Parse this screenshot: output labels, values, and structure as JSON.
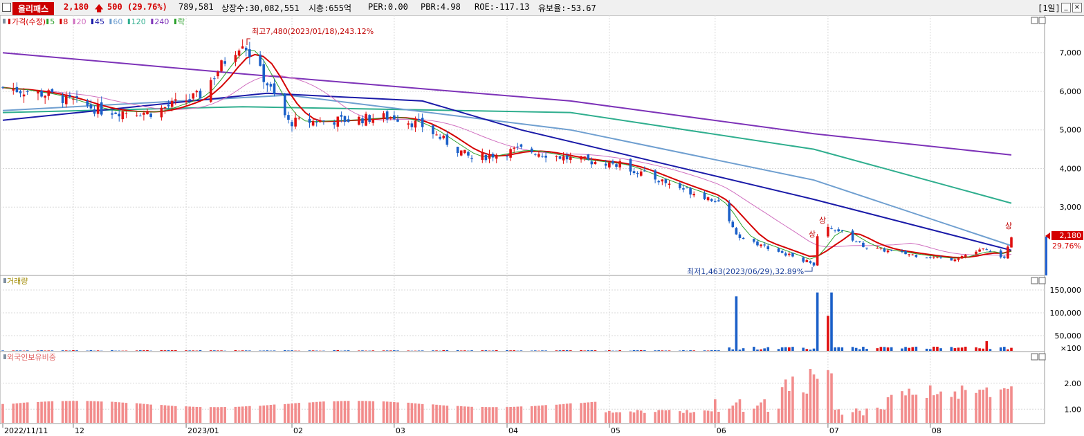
{
  "header": {
    "stock_name": "올리패스",
    "price": "2,180",
    "change": "500",
    "change_pct": "(29.76%)",
    "volume": "789,581",
    "listed_shares": "상장수:30,082,551",
    "market_cap": "시총:655억",
    "per": "PER:0.00",
    "pbr": "PBR:4.98",
    "roe": "ROE:-117.13",
    "float_ratio": "유보율:-53.67",
    "period": "[1일]"
  },
  "price_panel": {
    "legend": [
      {
        "label": "가격(수정)",
        "color": "#d40000"
      },
      {
        "label": "5",
        "color": "#2ca02c"
      },
      {
        "label": "8",
        "color": "#d40000"
      },
      {
        "label": "20",
        "color": "#d070c0"
      },
      {
        "label": "45",
        "color": "#1a1aa8"
      },
      {
        "label": "60",
        "color": "#6f9fd0"
      },
      {
        "label": "120",
        "color": "#2fae8e"
      },
      {
        "label": "240",
        "color": "#7d32b8"
      },
      {
        "label": "락",
        "color": "#2ca02c"
      }
    ],
    "high_annotation": "최고7,480(2023/01/18),243.12%",
    "low_annotation": "최저1,463(2023/06/29),32.89%",
    "upper_limit_marker": "상",
    "last_price_label": "2,180",
    "last_change_label": "29.76%",
    "y_ticks": [
      "7,000",
      "6,000",
      "5,000",
      "4,000",
      "3,000"
    ]
  },
  "volume_panel": {
    "title": "거래량",
    "y_ticks": [
      "150,000",
      "100,000",
      "50,000",
      "×100"
    ]
  },
  "foreign_panel": {
    "title": "외국인보유비중",
    "y_ticks": [
      "2.00",
      "1.00"
    ]
  },
  "x_axis": {
    "labels": [
      "2022/11/11",
      "12",
      "2023/01",
      "02",
      "03",
      "04",
      "05",
      "06",
      "07",
      "08"
    ]
  },
  "chart_data": {
    "type": "candlestick",
    "x_range": [
      "2022/11/11",
      "2023/08/24"
    ],
    "price_ylim": [
      1300,
      7900
    ],
    "volume_unit": "×100",
    "close_path": [
      {
        "date": "2022/11/11",
        "close": 6100
      },
      {
        "date": "2022/11/25",
        "close": 5900
      },
      {
        "date": "2022/12/09",
        "close": 5500
      },
      {
        "date": "2022/12/23",
        "close": 5450
      },
      {
        "date": "2023/01/06",
        "close": 5900
      },
      {
        "date": "2023/01/13",
        "close": 6800
      },
      {
        "date": "2023/01/18",
        "close": 7300
      },
      {
        "date": "2023/01/25",
        "close": 6200
      },
      {
        "date": "2023/01/31",
        "close": 5200
      },
      {
        "date": "2023/02/15",
        "close": 5250
      },
      {
        "date": "2023/03/02",
        "close": 5350
      },
      {
        "date": "2023/03/10",
        "close": 5100
      },
      {
        "date": "2023/03/24",
        "close": 4250
      },
      {
        "date": "2023/04/07",
        "close": 4500
      },
      {
        "date": "2023/04/21",
        "close": 4250
      },
      {
        "date": "2023/05/05",
        "close": 4100
      },
      {
        "date": "2023/05/19",
        "close": 3600
      },
      {
        "date": "2023/06/02",
        "close": 3150
      },
      {
        "date": "2023/06/07",
        "close": 2250
      },
      {
        "date": "2023/06/29",
        "close": 1520
      },
      {
        "date": "2023/06/30",
        "close": 2200
      },
      {
        "date": "2023/07/04",
        "close": 2500
      },
      {
        "date": "2023/07/14",
        "close": 1950
      },
      {
        "date": "2023/07/28",
        "close": 1750
      },
      {
        "date": "2023/08/07",
        "close": 1650
      },
      {
        "date": "2023/08/16",
        "close": 1900
      },
      {
        "date": "2023/08/22",
        "close": 1680
      },
      {
        "date": "2023/08/24",
        "close": 2180
      }
    ],
    "moving_averages": [
      {
        "period": 240,
        "values": [
          {
            "date": "2022/11/11",
            "v": 7000
          },
          {
            "date": "2023/01/18",
            "v": 6450
          },
          {
            "date": "2023/04/21",
            "v": 5750
          },
          {
            "date": "2023/06/29",
            "v": 4900
          },
          {
            "date": "2023/08/24",
            "v": 4350
          }
        ]
      },
      {
        "period": 120,
        "values": [
          {
            "date": "2022/11/11",
            "v": 5450
          },
          {
            "date": "2023/01/18",
            "v": 5600
          },
          {
            "date": "2023/04/21",
            "v": 5450
          },
          {
            "date": "2023/06/29",
            "v": 4500
          },
          {
            "date": "2023/08/24",
            "v": 3100
          }
        ]
      },
      {
        "period": 60,
        "values": [
          {
            "date": "2022/11/11",
            "v": 5500
          },
          {
            "date": "2023/01/31",
            "v": 5900
          },
          {
            "date": "2023/04/21",
            "v": 5000
          },
          {
            "date": "2023/06/29",
            "v": 3700
          },
          {
            "date": "2023/08/24",
            "v": 2000
          }
        ]
      },
      {
        "period": 45,
        "values": [
          {
            "date": "2022/11/11",
            "v": 5250
          },
          {
            "date": "2023/01/25",
            "v": 5950
          },
          {
            "date": "2023/03/10",
            "v": 5750
          },
          {
            "date": "2023/04/07",
            "v": 5000
          },
          {
            "date": "2023/06/29",
            "v": 3200
          },
          {
            "date": "2023/08/24",
            "v": 1880
          }
        ]
      }
    ],
    "volume_spikes": [
      {
        "date": "2023/06/07",
        "volume": 1400,
        "direction": "down"
      },
      {
        "date": "2023/06/30",
        "volume": 1500,
        "direction": "down"
      },
      {
        "date": "2023/07/03",
        "volume": 900,
        "direction": "up"
      },
      {
        "date": "2023/07/04",
        "volume": 1500,
        "direction": "down"
      },
      {
        "date": "2023/08/17",
        "volume": 250,
        "direction": "up"
      }
    ],
    "foreign_ownership_range": [
      0.5,
      2.9
    ]
  }
}
